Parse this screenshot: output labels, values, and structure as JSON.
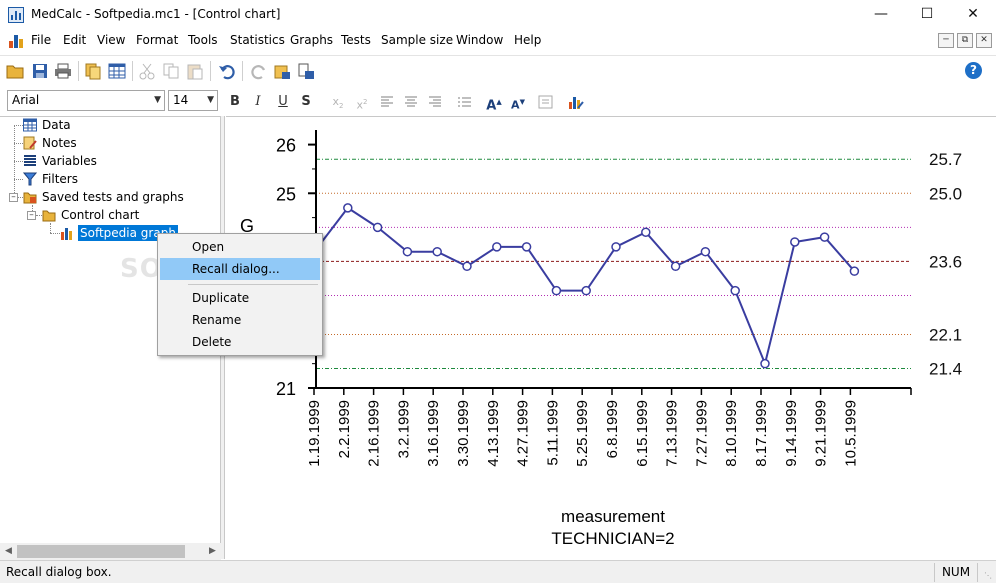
{
  "window": {
    "title": "MedCalc - Softpedia.mc1 - [Control chart]"
  },
  "menubar": {
    "items": [
      "File",
      "Edit",
      "View",
      "Format",
      "Tools",
      "Statistics",
      "Graphs",
      "Tests",
      "Sample size",
      "Window",
      "Help"
    ]
  },
  "toolbar1": {
    "icons": [
      "open-folder-icon",
      "save-icon",
      "print-icon",
      "copy-sheet-icon",
      "spreadsheet-icon",
      "cut-icon",
      "copy-icon",
      "paste-icon",
      "undo-icon",
      "redo-icon",
      "recall-icon",
      "export-icon",
      "help-icon"
    ]
  },
  "toolbar2": {
    "font_name": "Arial",
    "font_size": "14",
    "format_buttons": [
      "B",
      "I",
      "U",
      "S"
    ]
  },
  "tree": {
    "nodes": [
      {
        "label": "Data",
        "icon": "table-icon"
      },
      {
        "label": "Notes",
        "icon": "notes-icon"
      },
      {
        "label": "Variables",
        "icon": "variables-icon"
      },
      {
        "label": "Filters",
        "icon": "filter-icon"
      },
      {
        "label": "Saved tests and graphs",
        "icon": "folder-icon"
      },
      {
        "label": "Control chart",
        "icon": "folder-icon"
      },
      {
        "label": "Softpedia graph",
        "icon": "graph-icon"
      }
    ]
  },
  "context_menu": {
    "items": [
      "Open",
      "Recall dialog...",
      "Duplicate",
      "Rename",
      "Delete"
    ],
    "hovered_index": 1
  },
  "watermark": "SOFTPEDIA",
  "statusbar": {
    "text": "Recall dialog box.",
    "num": "NUM"
  },
  "colors": {
    "series": "#3a3da0",
    "mean_line": "#8b1a1a",
    "limit_2sd": "#c46a2a",
    "limit_1sd": "#b22db2",
    "limit_3sd": "#1e8a3e",
    "selection": "#0078d7",
    "menu_hover": "#91c9f7"
  },
  "chart_data": {
    "type": "line",
    "y_axis_visible_label": "G",
    "xlabel": "measurement",
    "subtitle": "TECHNICIAN=2",
    "ylim": [
      21,
      26.3
    ],
    "y_ticks": [
      "21",
      "24",
      "25",
      "26"
    ],
    "categories": [
      "1.19.1999",
      "2.2.1999",
      "2.16.1999",
      "3.2.1999",
      "3.16.1999",
      "3.30.1999",
      "4.13.1999",
      "4.27.1999",
      "5.11.1999",
      "5.25.1999",
      "6.8.1999",
      "6.15.1999",
      "7.13.1999",
      "7.27.1999",
      "8.10.1999",
      "8.17.1999",
      "9.14.1999",
      "9.21.1999",
      "10.5.1999"
    ],
    "series": [
      {
        "values": [
          23.9,
          24.7,
          24.3,
          23.8,
          23.8,
          23.5,
          23.9,
          23.9,
          23.0,
          23.0,
          23.9,
          24.2,
          23.5,
          23.8,
          23.0,
          21.5,
          24.0,
          24.1,
          23.4
        ]
      }
    ],
    "control_lines": [
      {
        "value": 25.7,
        "label": "25.7",
        "style": "dash-dot",
        "color": "#1e8a3e"
      },
      {
        "value": 25.0,
        "label": "25.0",
        "style": "dotted",
        "color": "#c46a2a"
      },
      {
        "value": 24.3,
        "label": "",
        "style": "dotted",
        "color": "#b22db2"
      },
      {
        "value": 23.6,
        "label": "23.6",
        "style": "dashed",
        "color": "#8b1a1a"
      },
      {
        "value": 22.9,
        "label": "",
        "style": "dotted",
        "color": "#b22db2"
      },
      {
        "value": 22.1,
        "label": "22.1",
        "style": "dotted",
        "color": "#c46a2a"
      },
      {
        "value": 21.4,
        "label": "21.4",
        "style": "dash-dot",
        "color": "#1e8a3e"
      }
    ]
  }
}
